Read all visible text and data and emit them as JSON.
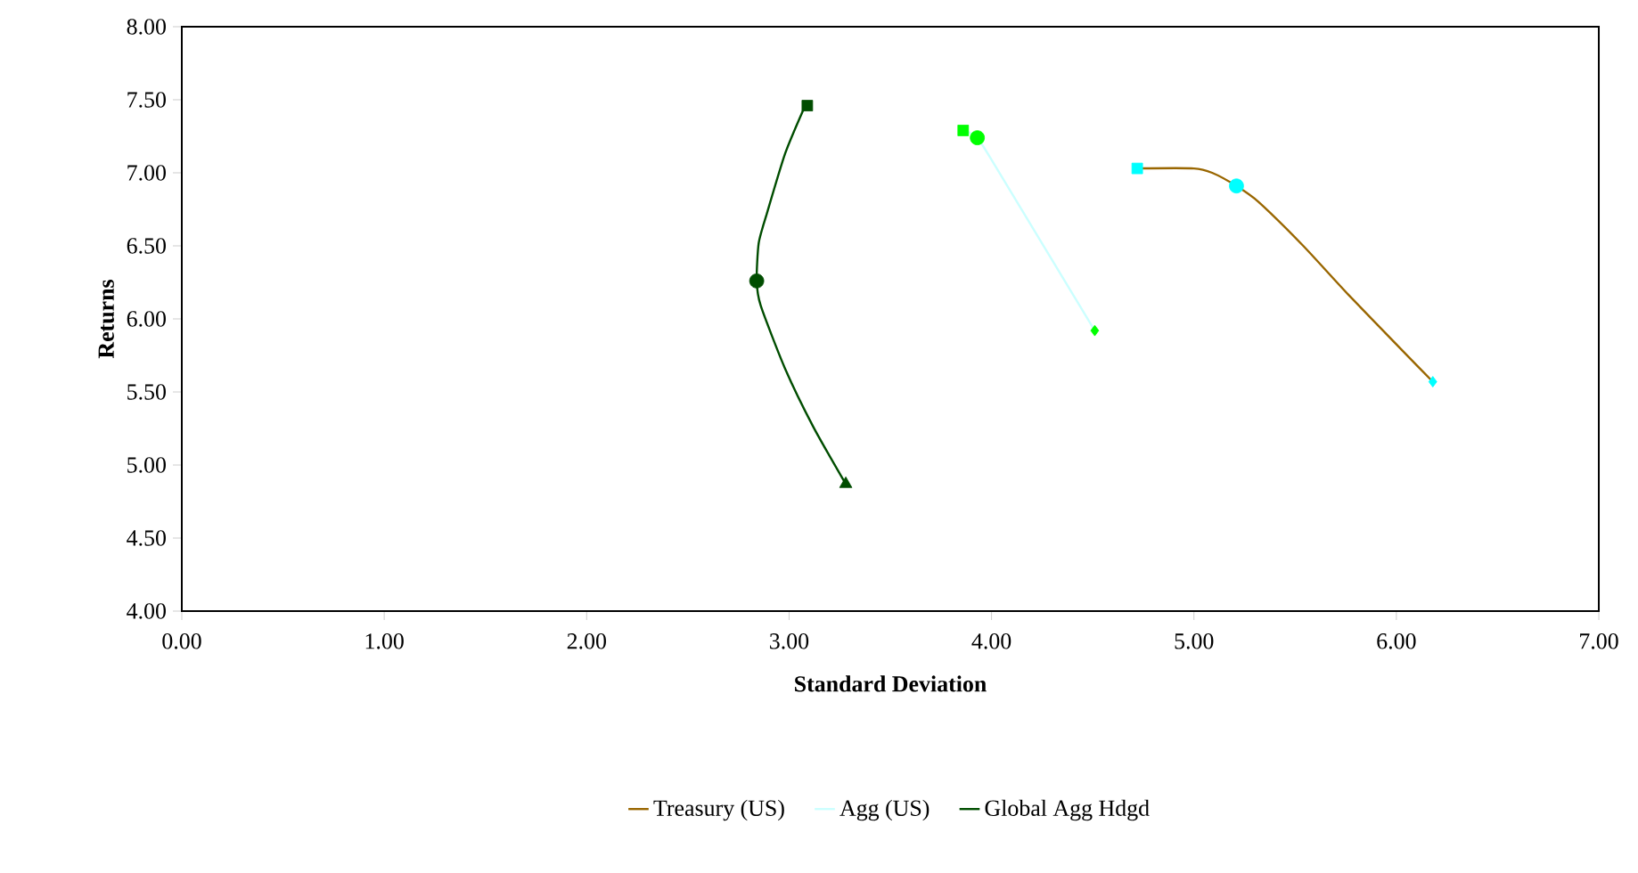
{
  "chart_data": {
    "type": "line",
    "xlabel": "Standard Deviation",
    "ylabel": "Returns",
    "xlim": [
      0,
      7
    ],
    "ylim": [
      4,
      8
    ],
    "xticks": [
      {
        "value": 0,
        "label": "0.00"
      },
      {
        "value": 1,
        "label": "1.00"
      },
      {
        "value": 2,
        "label": "2.00"
      },
      {
        "value": 3,
        "label": "3.00"
      },
      {
        "value": 4,
        "label": "4.00"
      },
      {
        "value": 5,
        "label": "5.00"
      },
      {
        "value": 6,
        "label": "6.00"
      },
      {
        "value": 7,
        "label": "7.00"
      }
    ],
    "yticks": [
      {
        "value": 4,
        "label": "4.00"
      },
      {
        "value": 4.5,
        "label": "4.50"
      },
      {
        "value": 5,
        "label": "5.00"
      },
      {
        "value": 5.5,
        "label": "5.50"
      },
      {
        "value": 6,
        "label": "6.00"
      },
      {
        "value": 6.5,
        "label": "6.50"
      },
      {
        "value": 7,
        "label": "7.00"
      },
      {
        "value": 7.5,
        "label": "7.50"
      },
      {
        "value": 8,
        "label": "8.00"
      }
    ],
    "grid": false,
    "legend": "bottom",
    "series": [
      {
        "name": "Treasury (US)",
        "color": "#996600",
        "marker": "none",
        "x": [
          4.72,
          5.0,
          5.09,
          5.21,
          5.32,
          5.54,
          5.76,
          6.06,
          6.18
        ],
        "values": [
          7.03,
          7.03,
          7.0,
          6.91,
          6.8,
          6.5,
          6.17,
          5.74,
          5.57
        ]
      },
      {
        "name": "Agg (US)",
        "color": "#ccffff",
        "marker": "none",
        "x": [
          3.86,
          3.93,
          4.03,
          4.51
        ],
        "values": [
          7.29,
          7.24,
          7.02,
          5.92
        ]
      },
      {
        "name": "Global Agg Hdgd",
        "color": "#004d00",
        "marker": "none",
        "x": [
          3.07,
          2.98,
          2.89,
          2.85,
          2.84,
          2.86,
          2.98,
          3.12,
          3.28
        ],
        "values": [
          7.43,
          7.13,
          6.72,
          6.52,
          6.26,
          6.09,
          5.66,
          5.26,
          4.87
        ]
      },
      {
        "type": "scatter",
        "marker": "square",
        "color": "#00ffff",
        "x": [
          4.72
        ],
        "values": [
          7.03
        ]
      },
      {
        "type": "scatter",
        "marker": "circle",
        "color": "#00ffff",
        "x": [
          5.21
        ],
        "values": [
          6.91
        ]
      },
      {
        "type": "scatter",
        "marker": "diamond",
        "color": "#00ffff",
        "x": [
          6.18
        ],
        "values": [
          5.57
        ]
      },
      {
        "type": "scatter",
        "marker": "square",
        "color": "#00ff00",
        "x": [
          3.86
        ],
        "values": [
          7.29
        ]
      },
      {
        "type": "scatter",
        "marker": "circle",
        "color": "#00ff00",
        "x": [
          3.93
        ],
        "values": [
          7.24
        ]
      },
      {
        "type": "scatter",
        "marker": "diamond",
        "color": "#00ff00",
        "x": [
          4.51
        ],
        "values": [
          5.92
        ]
      },
      {
        "type": "scatter",
        "marker": "square",
        "color": "#004d00",
        "x": [
          3.09
        ],
        "values": [
          7.46
        ]
      },
      {
        "type": "scatter",
        "marker": "circle",
        "color": "#004d00",
        "x": [
          2.84
        ],
        "values": [
          6.26
        ]
      },
      {
        "type": "scatter",
        "marker": "triangle",
        "color": "#004d00",
        "x": [
          3.28
        ],
        "values": [
          4.87
        ]
      }
    ]
  }
}
